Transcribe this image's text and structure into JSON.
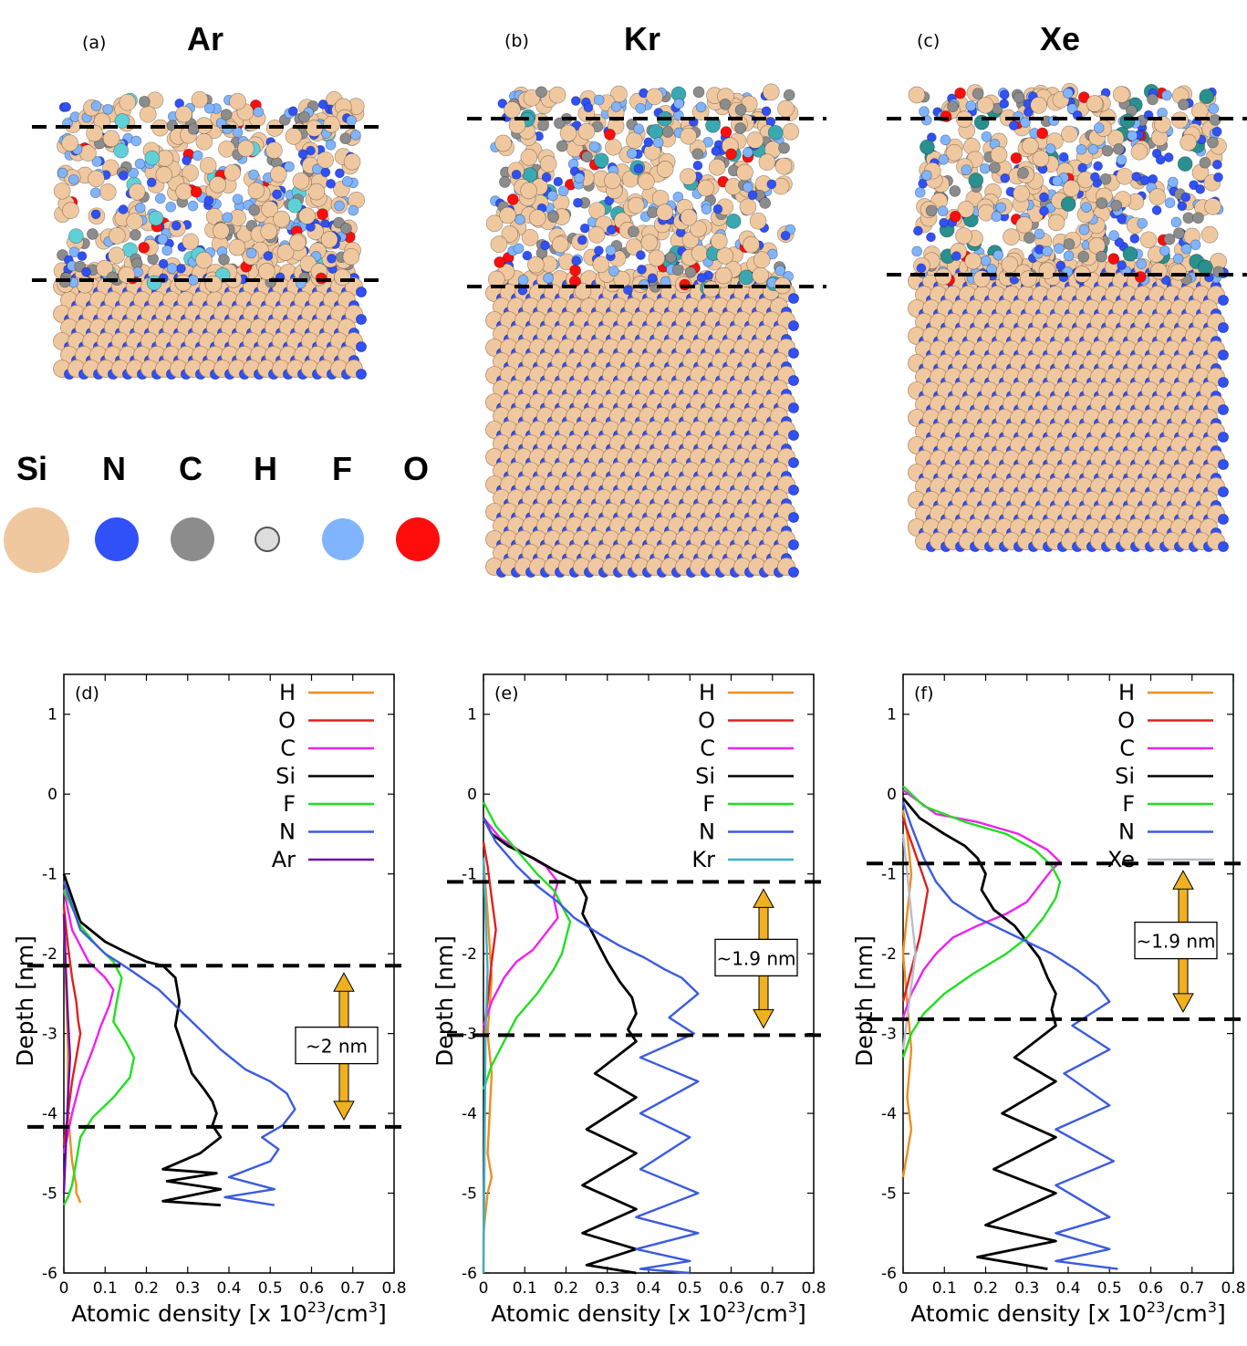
{
  "structure_panels": [
    {
      "panel_label": "(a)",
      "title": "Ar"
    },
    {
      "panel_label": "(b)",
      "title": "Kr"
    },
    {
      "panel_label": "(c)",
      "title": "Xe"
    }
  ],
  "atom_key": [
    {
      "symbol": "Si",
      "color": "#F0C8A0"
    },
    {
      "symbol": "N",
      "color": "#3050F8"
    },
    {
      "symbol": "C",
      "color": "#8C8C8C"
    },
    {
      "symbol": "H",
      "color": "#DDDDDD"
    },
    {
      "symbol": "F",
      "color": "#80B4FF"
    },
    {
      "symbol": "O",
      "color": "#FF0D0D"
    }
  ],
  "colors": {
    "H": "#F28C1E",
    "O": "#E02020",
    "C": "#F020F0",
    "Si": "#000000",
    "F": "#20E020",
    "N": "#3A5BE0",
    "Ar": "#6A0DAD",
    "Kr": "#40B0C8",
    "Xe": "#B8BCCC",
    "arrow": "#F0B020"
  },
  "chart_data": [
    {
      "type": "line",
      "panel_label": "(d)",
      "xlabel": "Atomic density [x 10",
      "xlabel_exp": "23",
      "xlabel_unit": "/cm",
      "xlabel_unit_exp": "3",
      "xlabel_close": "]",
      "ylabel": "Depth [nm]",
      "xlim": [
        0,
        0.8
      ],
      "ylim": [
        -6,
        1.5
      ],
      "xticks": [
        "0",
        "0.1",
        "0.2",
        "0.3",
        "0.4",
        "0.5",
        "0.6",
        "0.7",
        "0.8"
      ],
      "yticks": [
        "1",
        "0",
        "-1",
        "-2",
        "-3",
        "-4",
        "-5",
        "-6"
      ],
      "legend": [
        "H",
        "O",
        "C",
        "Si",
        "F",
        "N",
        "Ar"
      ],
      "dashed_lines_depth": [
        -2.15,
        -4.17
      ],
      "annotation": "~2 nm",
      "series": [
        {
          "name": "H",
          "x": [
            0.0,
            0.005,
            0.01,
            0.01,
            0.02,
            0.03,
            0.03,
            0.035,
            0.04
          ],
          "y": [
            -1.4,
            -2.4,
            -3.2,
            -4.0,
            -4.6,
            -4.9,
            -5.0,
            -5.05,
            -5.12
          ]
        },
        {
          "name": "O",
          "x": [
            0.0,
            0.01,
            0.02,
            0.03,
            0.035,
            0.04,
            0.03,
            0.02,
            0.01,
            0.0
          ],
          "y": [
            -1.4,
            -1.9,
            -2.3,
            -2.6,
            -2.85,
            -3.0,
            -3.3,
            -3.6,
            -4.0,
            -4.4
          ]
        },
        {
          "name": "C",
          "x": [
            0.0,
            0.02,
            0.06,
            0.1,
            0.12,
            0.11,
            0.09,
            0.07,
            0.04,
            0.02,
            0.0
          ],
          "y": [
            -1.2,
            -1.7,
            -2.1,
            -2.3,
            -2.45,
            -2.65,
            -2.9,
            -3.2,
            -3.6,
            -4.0,
            -4.5
          ]
        },
        {
          "name": "Si",
          "x": [
            0.0,
            0.04,
            0.1,
            0.15,
            0.2,
            0.24,
            0.27,
            0.28,
            0.27,
            0.29,
            0.31,
            0.34,
            0.36,
            0.37,
            0.36,
            0.38,
            0.33,
            0.24,
            0.37,
            0.25,
            0.38,
            0.24,
            0.38
          ],
          "y": [
            -1.0,
            -1.6,
            -1.85,
            -1.98,
            -2.1,
            -2.15,
            -2.3,
            -2.6,
            -2.9,
            -3.2,
            -3.5,
            -3.7,
            -3.85,
            -4.0,
            -4.15,
            -4.3,
            -4.5,
            -4.7,
            -4.75,
            -4.85,
            -4.95,
            -5.1,
            -5.15
          ]
        },
        {
          "name": "F",
          "x": [
            0.0,
            0.04,
            0.08,
            0.12,
            0.14,
            0.13,
            0.12,
            0.15,
            0.17,
            0.16,
            0.12,
            0.07,
            0.04,
            0.03,
            0.02,
            0.01,
            0.0
          ],
          "y": [
            -1.2,
            -1.65,
            -1.9,
            -2.1,
            -2.3,
            -2.55,
            -2.85,
            -3.1,
            -3.3,
            -3.55,
            -3.8,
            -4.05,
            -4.3,
            -4.6,
            -4.9,
            -5.05,
            -5.15
          ]
        },
        {
          "name": "N",
          "x": [
            0.0,
            0.04,
            0.1,
            0.16,
            0.23,
            0.3,
            0.38,
            0.44,
            0.5,
            0.54,
            0.56,
            0.53,
            0.48,
            0.52,
            0.5,
            0.4,
            0.51,
            0.39,
            0.51
          ],
          "y": [
            -1.1,
            -1.7,
            -2.0,
            -2.2,
            -2.45,
            -2.8,
            -3.2,
            -3.45,
            -3.6,
            -3.75,
            -3.95,
            -4.15,
            -4.3,
            -4.45,
            -4.6,
            -4.8,
            -4.95,
            -5.05,
            -5.15
          ]
        },
        {
          "name": "Ar",
          "x": [
            0.0,
            0.005,
            0.01,
            0.015,
            0.01,
            0.005,
            0.0
          ],
          "y": [
            -1.5,
            -2.2,
            -2.8,
            -3.3,
            -3.8,
            -4.4,
            -5.0
          ]
        }
      ]
    },
    {
      "type": "line",
      "panel_label": "(e)",
      "xlabel": "Atomic density [x 10",
      "xlabel_exp": "23",
      "xlabel_unit": "/cm",
      "xlabel_unit_exp": "3",
      "xlabel_close": "]",
      "ylabel": "Depth [nm]",
      "xlim": [
        0,
        0.8
      ],
      "ylim": [
        -6,
        1.5
      ],
      "xticks": [
        "0",
        "0.1",
        "0.2",
        "0.3",
        "0.4",
        "0.5",
        "0.6",
        "0.7",
        "0.8"
      ],
      "yticks": [
        "1",
        "0",
        "-1",
        "-2",
        "-3",
        "-4",
        "-5",
        "-6"
      ],
      "legend": [
        "H",
        "O",
        "C",
        "Si",
        "F",
        "N",
        "Kr"
      ],
      "dashed_lines_depth": [
        -1.1,
        -3.02
      ],
      "annotation": "~1.9 nm",
      "series": [
        {
          "name": "H",
          "x": [
            0.0,
            0.01,
            0.02,
            0.01,
            0.02,
            0.015,
            0.01,
            0.02,
            0.01,
            0.0,
            0.0
          ],
          "y": [
            -0.8,
            -1.5,
            -2.3,
            -3.0,
            -3.5,
            -4.0,
            -4.5,
            -4.8,
            -5.0,
            -5.5,
            -6.0
          ]
        },
        {
          "name": "O",
          "x": [
            0.0,
            0.01,
            0.02,
            0.03,
            0.02,
            0.01,
            0.0
          ],
          "y": [
            -0.6,
            -0.9,
            -1.3,
            -1.7,
            -2.1,
            -2.6,
            -3.0
          ]
        },
        {
          "name": "C",
          "x": [
            0.0,
            0.04,
            0.1,
            0.15,
            0.18,
            0.17,
            0.18,
            0.15,
            0.12,
            0.08,
            0.05,
            0.02,
            0.0
          ],
          "y": [
            -0.3,
            -0.55,
            -0.75,
            -0.9,
            -1.1,
            -1.3,
            -1.55,
            -1.75,
            -1.95,
            -2.1,
            -2.3,
            -2.6,
            -2.9
          ]
        },
        {
          "name": "Si",
          "x": [
            0.0,
            0.02,
            0.06,
            0.12,
            0.17,
            0.21,
            0.23,
            0.25,
            0.24,
            0.27,
            0.3,
            0.33,
            0.36,
            0.37,
            0.35,
            0.37,
            0.27,
            0.37,
            0.25,
            0.37,
            0.24,
            0.37,
            0.24,
            0.37,
            0.25,
            0.37
          ],
          "y": [
            -0.3,
            -0.5,
            -0.65,
            -0.8,
            -0.95,
            -1.05,
            -1.1,
            -1.3,
            -1.5,
            -1.8,
            -2.1,
            -2.35,
            -2.55,
            -2.75,
            -2.95,
            -3.1,
            -3.5,
            -3.8,
            -4.2,
            -4.5,
            -4.9,
            -5.2,
            -5.5,
            -5.7,
            -5.9,
            -6.0
          ]
        },
        {
          "name": "F",
          "x": [
            0.0,
            0.03,
            0.08,
            0.13,
            0.17,
            0.19,
            0.21,
            0.2,
            0.19,
            0.17,
            0.13,
            0.08,
            0.05,
            0.02,
            0.0
          ],
          "y": [
            -0.1,
            -0.4,
            -0.7,
            -1.0,
            -1.2,
            -1.4,
            -1.6,
            -1.8,
            -2.0,
            -2.2,
            -2.5,
            -2.8,
            -3.1,
            -3.4,
            -3.7
          ]
        },
        {
          "name": "N",
          "x": [
            0.0,
            0.03,
            0.08,
            0.13,
            0.18,
            0.22,
            0.28,
            0.33,
            0.39,
            0.44,
            0.48,
            0.52,
            0.45,
            0.51,
            0.38,
            0.52,
            0.38,
            0.5,
            0.38,
            0.52,
            0.37,
            0.52,
            0.37,
            0.5,
            0.38,
            0.5
          ],
          "y": [
            -0.3,
            -0.6,
            -0.9,
            -1.15,
            -1.35,
            -1.55,
            -1.75,
            -1.9,
            -2.05,
            -2.2,
            -2.3,
            -2.5,
            -2.8,
            -3.0,
            -3.3,
            -3.6,
            -4.0,
            -4.3,
            -4.7,
            -5.0,
            -5.3,
            -5.5,
            -5.7,
            -5.85,
            -5.95,
            -6.0
          ]
        },
        {
          "name": "Kr",
          "x": [
            0.0,
            0.005,
            0.01,
            0.005,
            0.0
          ],
          "y": [
            -0.8,
            -1.5,
            -2.2,
            -3.0,
            -6.0
          ]
        }
      ]
    },
    {
      "type": "line",
      "panel_label": "(f)",
      "xlabel": "Atomic density [x 10",
      "xlabel_exp": "23",
      "xlabel_unit": "/cm",
      "xlabel_unit_exp": "3",
      "xlabel_close": "]",
      "ylabel": "Depth [nm]",
      "xlim": [
        0,
        0.8
      ],
      "ylim": [
        -6,
        1.5
      ],
      "xticks": [
        "0",
        "0.1",
        "0.2",
        "0.3",
        "0.4",
        "0.5",
        "0.6",
        "0.7",
        "0.8"
      ],
      "yticks": [
        "1",
        "0",
        "-1",
        "-2",
        "-3",
        "-4",
        "-5",
        "-6"
      ],
      "legend": [
        "H",
        "O",
        "C",
        "Si",
        "F",
        "N",
        "Xe"
      ],
      "dashed_lines_depth": [
        -0.87,
        -2.82
      ],
      "annotation": "~1.9 nm",
      "series": [
        {
          "name": "H",
          "x": [
            0.0,
            0.01,
            0.02,
            0.01,
            0.0,
            0.01,
            0.02,
            0.01,
            0.02,
            0.01,
            0.0
          ],
          "y": [
            -0.2,
            -0.5,
            -1.0,
            -1.5,
            -2.0,
            -2.6,
            -3.2,
            -3.8,
            -4.2,
            -4.5,
            -4.8
          ]
        },
        {
          "name": "O",
          "x": [
            0.0,
            0.02,
            0.04,
            0.06,
            0.05,
            0.04,
            0.02,
            0.0
          ],
          "y": [
            -0.3,
            -0.6,
            -0.9,
            -1.2,
            -1.5,
            -1.8,
            -2.2,
            -2.6
          ]
        },
        {
          "name": "C",
          "x": [
            0.0,
            0.08,
            0.18,
            0.28,
            0.35,
            0.38,
            0.36,
            0.33,
            0.3,
            0.25,
            0.18,
            0.12,
            0.08,
            0.05,
            0.02,
            0.0
          ],
          "y": [
            0.05,
            -0.25,
            -0.35,
            -0.5,
            -0.7,
            -0.85,
            -0.95,
            -1.15,
            -1.35,
            -1.5,
            -1.65,
            -1.8,
            -2.0,
            -2.2,
            -2.5,
            -2.8
          ]
        },
        {
          "name": "Si",
          "x": [
            0.0,
            0.04,
            0.1,
            0.15,
            0.18,
            0.2,
            0.19,
            0.22,
            0.27,
            0.3,
            0.33,
            0.35,
            0.37,
            0.36,
            0.37,
            0.27,
            0.37,
            0.24,
            0.37,
            0.22,
            0.37,
            0.2,
            0.37,
            0.18,
            0.35
          ],
          "y": [
            -0.05,
            -0.3,
            -0.5,
            -0.65,
            -0.8,
            -1.0,
            -1.2,
            -1.45,
            -1.65,
            -1.85,
            -2.05,
            -2.3,
            -2.5,
            -2.7,
            -2.9,
            -3.3,
            -3.6,
            -4.0,
            -4.3,
            -4.7,
            -5.0,
            -5.4,
            -5.6,
            -5.8,
            -5.95
          ]
        },
        {
          "name": "F",
          "x": [
            0.0,
            0.05,
            0.15,
            0.25,
            0.32,
            0.36,
            0.38,
            0.37,
            0.34,
            0.3,
            0.25,
            0.17,
            0.1,
            0.05,
            0.02,
            0.0
          ],
          "y": [
            0.1,
            -0.15,
            -0.35,
            -0.5,
            -0.7,
            -0.9,
            -1.1,
            -1.3,
            -1.55,
            -1.8,
            -2.0,
            -2.25,
            -2.5,
            -2.75,
            -3.0,
            -3.3
          ]
        },
        {
          "name": "N",
          "x": [
            0.0,
            0.02,
            0.05,
            0.08,
            0.12,
            0.18,
            0.24,
            0.3,
            0.36,
            0.42,
            0.47,
            0.5,
            0.41,
            0.5,
            0.39,
            0.5,
            0.37,
            0.51,
            0.37,
            0.5,
            0.37,
            0.5,
            0.37,
            0.52
          ],
          "y": [
            -0.1,
            -0.4,
            -0.8,
            -1.1,
            -1.35,
            -1.55,
            -1.7,
            -1.85,
            -2.0,
            -2.2,
            -2.4,
            -2.6,
            -2.9,
            -3.2,
            -3.5,
            -3.9,
            -4.2,
            -4.6,
            -4.9,
            -5.3,
            -5.5,
            -5.7,
            -5.85,
            -5.95
          ]
        },
        {
          "name": "Xe",
          "x": [
            0.0,
            0.01,
            0.02,
            0.03,
            0.02,
            0.01,
            0.0
          ],
          "y": [
            -0.5,
            -1.0,
            -1.5,
            -2.0,
            -2.4,
            -2.8,
            -3.2
          ]
        }
      ]
    }
  ]
}
